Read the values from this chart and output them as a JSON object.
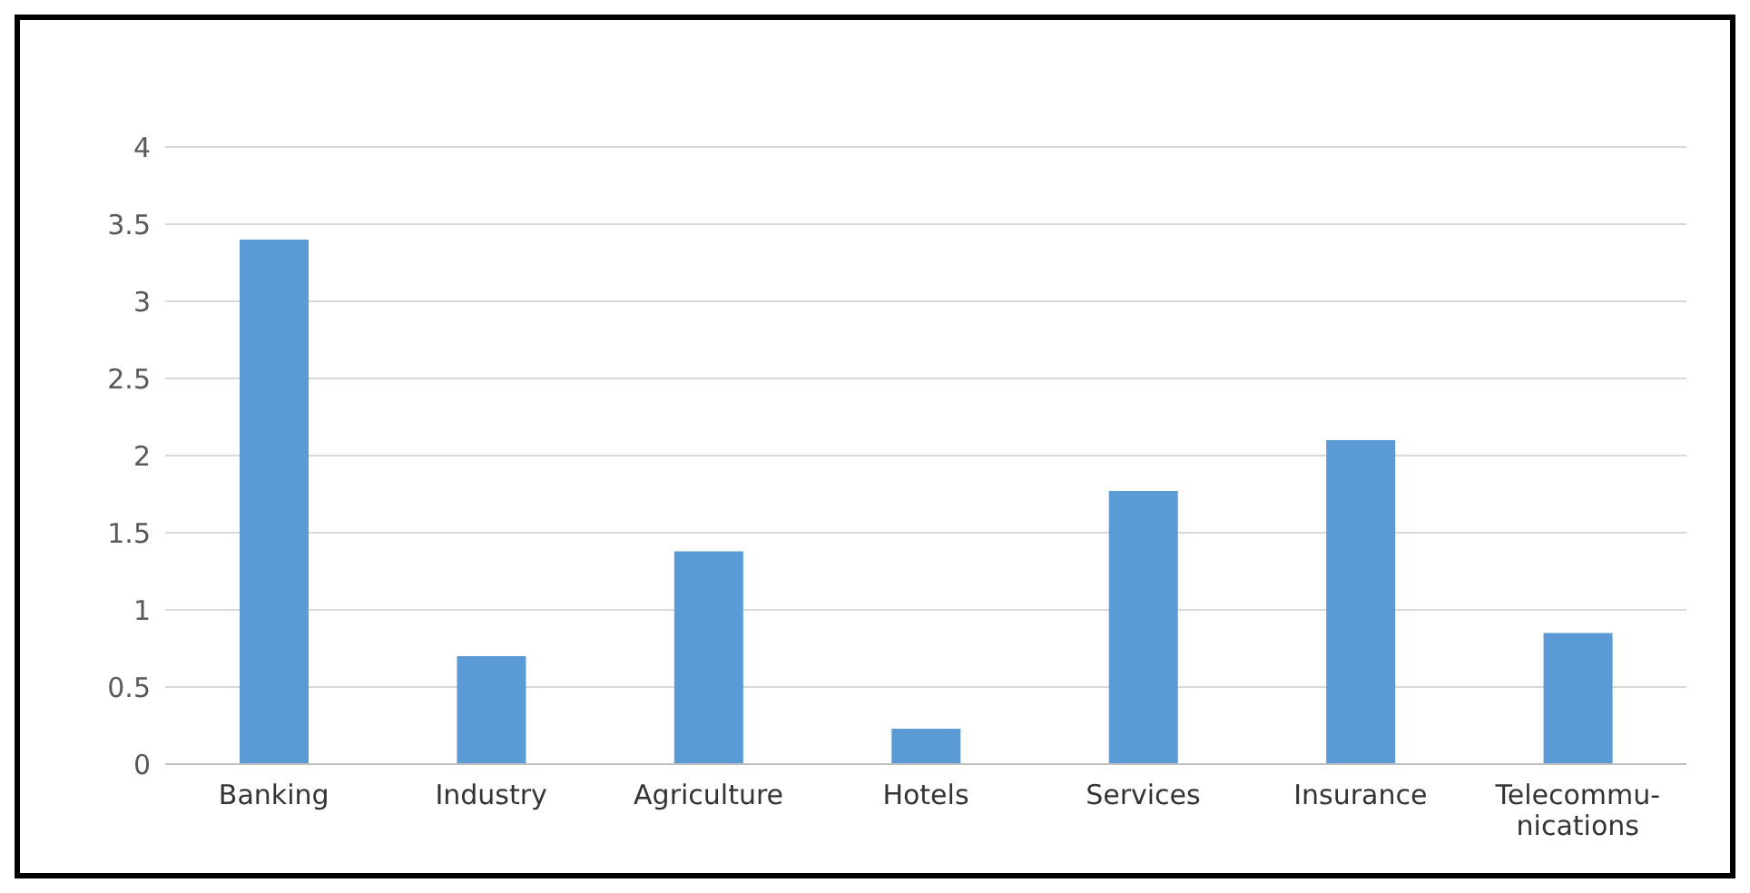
{
  "chart_data": {
    "type": "bar",
    "categories": [
      "Banking",
      "Industry",
      "Agriculture",
      "Hotels",
      "Services",
      "Insurance",
      "Telecommu-\nnications"
    ],
    "values": [
      3.4,
      0.7,
      1.38,
      0.23,
      1.77,
      2.1,
      0.85
    ],
    "color": "#5b9bd5",
    "ylim": [
      0,
      4
    ],
    "yticks": [
      0,
      0.5,
      1,
      1.5,
      2,
      2.5,
      3,
      3.5,
      4
    ],
    "grid": "y"
  }
}
